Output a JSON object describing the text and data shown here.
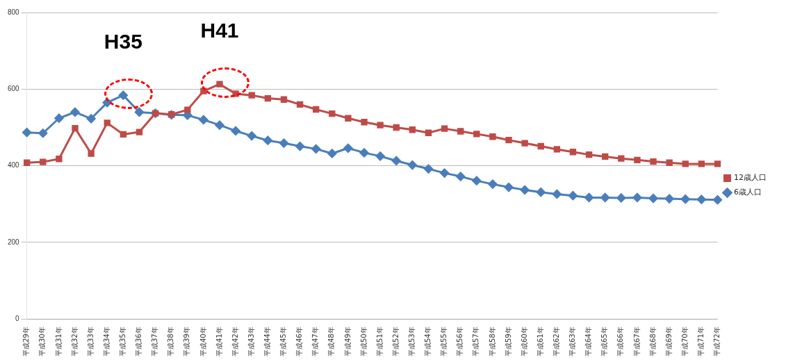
{
  "chart_data": {
    "type": "line",
    "categories": [
      "平成29年",
      "平成30年",
      "平成31年",
      "平成32年",
      "平成33年",
      "平成34年",
      "平成35年",
      "平成36年",
      "平成37年",
      "平成38年",
      "平成39年",
      "平成40年",
      "平成41年",
      "平成42年",
      "平成43年",
      "平成44年",
      "平成45年",
      "平成46年",
      "平成47年",
      "平成48年",
      "平成49年",
      "平成50年",
      "平成51年",
      "平成52年",
      "平成53年",
      "平成54年",
      "平成55年",
      "平成56年",
      "平成57年",
      "平成58年",
      "平成59年",
      "平成60年",
      "平成61年",
      "平成62年",
      "平成63年",
      "平成64年",
      "平成65年",
      "平成66年",
      "平成67年",
      "平成68年",
      "平成69年",
      "平成70年",
      "平成71年",
      "平成72年"
    ],
    "series": [
      {
        "name": "6歳人口",
        "color": "#4a7ebb",
        "marker": "diamond",
        "values": [
          487,
          485,
          524,
          540,
          523,
          565,
          584,
          540,
          537,
          533,
          532,
          520,
          506,
          491,
          478,
          466,
          459,
          451,
          444,
          432,
          446,
          434,
          425,
          413,
          402,
          392,
          381,
          372,
          361,
          352,
          344,
          337,
          331,
          326,
          322,
          317,
          317,
          316,
          317,
          315,
          314,
          313,
          312,
          311
        ]
      },
      {
        "name": "12歳人口",
        "color": "#be4b48",
        "marker": "square",
        "values": [
          408,
          410,
          418,
          498,
          432,
          512,
          482,
          488,
          537,
          534,
          546,
          595,
          613,
          588,
          584,
          576,
          573,
          560,
          547,
          536,
          524,
          514,
          506,
          500,
          494,
          486,
          497,
          490,
          483,
          476,
          467,
          459,
          451,
          443,
          436,
          429,
          424,
          419,
          415,
          411,
          408,
          405,
          405,
          405
        ]
      }
    ],
    "ylim": [
      0,
      800
    ],
    "yticks": [
      0,
      200,
      400,
      600,
      800
    ],
    "grid": "y",
    "legend": "right",
    "line_style": "solid",
    "annotations": [
      "H35",
      "H41"
    ]
  }
}
